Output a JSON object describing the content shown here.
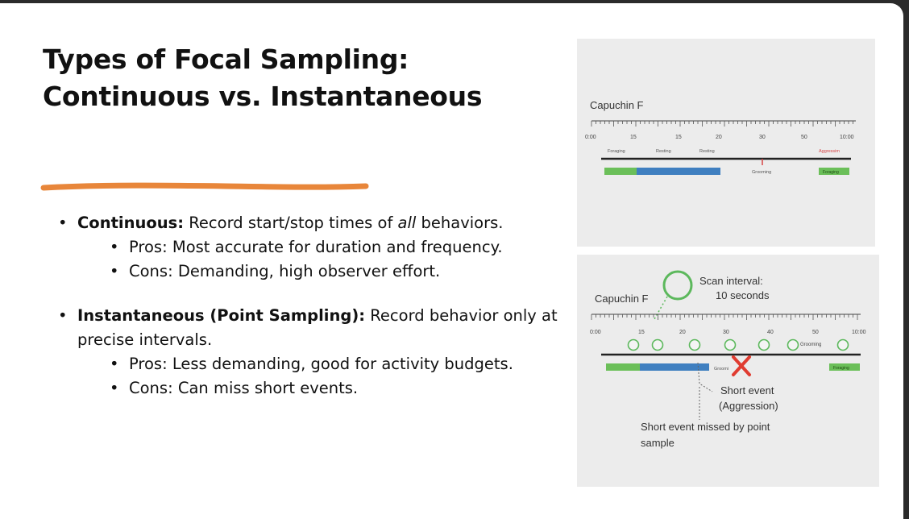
{
  "slide": {
    "title_line1": "Types of Focal Sampling:",
    "title_line2": "Continuous vs. Instantaneous",
    "accent_color": "#e8863a",
    "bullets": [
      {
        "bold": "Continuous:",
        "text_pre": " Record start/stop times of ",
        "italic": "all",
        "text_post": " behaviors."
      },
      {
        "text": "Pros: Most accurate for duration and frequency."
      },
      {
        "text": "Cons: Demanding, high observer effort."
      },
      {
        "bold": "Instantaneous (Point Sampling):",
        "text": " Record behavior only at precise intervals."
      },
      {
        "text": "Pros: Less demanding, good for activity budgets."
      },
      {
        "text": "Cons: Can miss short events."
      }
    ]
  },
  "figure_top": {
    "subject": "Capuchin F",
    "tick_labels": [
      "0:00",
      "15",
      "15",
      "20",
      "30",
      "50",
      "10:00"
    ],
    "behaviors": [
      "Foraging",
      "Resting",
      "Resting",
      "Aggressim"
    ],
    "grooming_label": "Grooming",
    "end_bar_label": "Foraging",
    "colors": {
      "foraging": "#6bbf59",
      "resting": "#3f7fc0",
      "aggression": "#d64545"
    }
  },
  "figure_bottom": {
    "subject": "Capuchin F",
    "scan_label": "Scan interval:",
    "scan_value": "10 seconds",
    "tick_labels": [
      "0:00",
      "15",
      "20",
      "30",
      "40",
      "50",
      "10:00"
    ],
    "point_label": "Grooming",
    "bar_label": "Groomi",
    "end_bar_label": "Foraging",
    "short_event_line1": "Short event",
    "short_event_line2": "(Aggression)",
    "missed_line1": "Short event missed by point",
    "missed_line2": "sample",
    "colors": {
      "circle": "#5cb85c",
      "cross": "#e03c31"
    }
  }
}
